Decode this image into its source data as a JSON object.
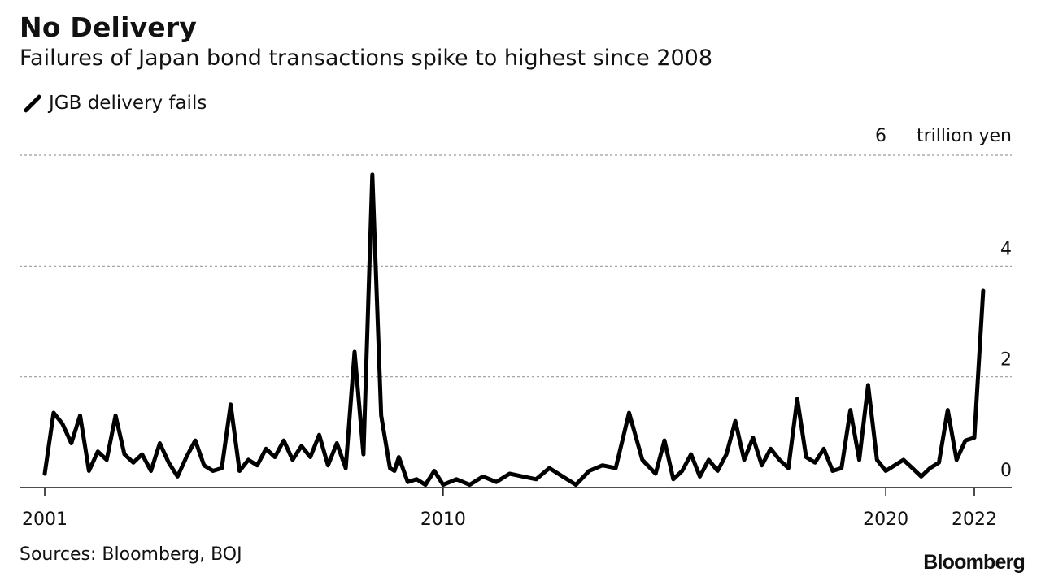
{
  "header": {
    "title": "No Delivery",
    "subtitle": "Failures of Japan bond transactions spike to highest since 2008"
  },
  "legend": {
    "label": "JGB delivery fails"
  },
  "footer": {
    "source": "Sources: Bloomberg, BOJ",
    "brand": "Bloomberg"
  },
  "chart_data": {
    "type": "line",
    "title": "No Delivery",
    "subtitle": "Failures of Japan bond transactions spike to highest since 2008",
    "y_unit": "trillion yen",
    "ylim": [
      0,
      6
    ],
    "y_ticks": [
      0,
      2,
      4,
      6
    ],
    "xlim": [
      2000.8,
      2022.8
    ],
    "x_ticks": [
      2001,
      2010,
      2020,
      2022
    ],
    "grid": true,
    "legend_position": "top-left",
    "series": [
      {
        "name": "JGB delivery fails",
        "color": "#000000",
        "x": [
          2001.0,
          2001.2,
          2001.4,
          2001.6,
          2001.8,
          2002.0,
          2002.2,
          2002.4,
          2002.6,
          2002.8,
          2003.0,
          2003.2,
          2003.4,
          2003.6,
          2003.8,
          2004.0,
          2004.2,
          2004.4,
          2004.6,
          2004.8,
          2005.0,
          2005.2,
          2005.4,
          2005.6,
          2005.8,
          2006.0,
          2006.2,
          2006.4,
          2006.6,
          2006.8,
          2007.0,
          2007.2,
          2007.4,
          2007.6,
          2007.8,
          2008.0,
          2008.2,
          2008.4,
          2008.6,
          2008.8,
          2008.9,
          2009.0,
          2009.2,
          2009.4,
          2009.6,
          2009.8,
          2010.0,
          2010.3,
          2010.6,
          2010.9,
          2011.2,
          2011.5,
          2011.8,
          2012.1,
          2012.4,
          2012.7,
          2013.0,
          2013.3,
          2013.6,
          2013.9,
          2014.2,
          2014.5,
          2014.8,
          2015.0,
          2015.2,
          2015.4,
          2015.6,
          2015.8,
          2016.0,
          2016.2,
          2016.4,
          2016.6,
          2016.8,
          2017.0,
          2017.2,
          2017.4,
          2017.6,
          2017.8,
          2018.0,
          2018.2,
          2018.4,
          2018.6,
          2018.8,
          2019.0,
          2019.2,
          2019.4,
          2019.6,
          2019.8,
          2020.0,
          2020.2,
          2020.4,
          2020.6,
          2020.8,
          2021.0,
          2021.2,
          2021.4,
          2021.6,
          2021.8,
          2022.0,
          2022.2
        ],
        "y": [
          0.25,
          1.35,
          1.15,
          0.8,
          1.3,
          0.3,
          0.65,
          0.5,
          1.3,
          0.6,
          0.45,
          0.6,
          0.3,
          0.8,
          0.45,
          0.2,
          0.55,
          0.85,
          0.4,
          0.3,
          0.35,
          1.5,
          0.3,
          0.5,
          0.4,
          0.7,
          0.55,
          0.85,
          0.5,
          0.75,
          0.55,
          0.95,
          0.4,
          0.8,
          0.35,
          2.45,
          0.6,
          5.65,
          1.3,
          0.35,
          0.3,
          0.55,
          0.1,
          0.15,
          0.05,
          0.3,
          0.05,
          0.15,
          0.05,
          0.2,
          0.1,
          0.25,
          0.2,
          0.15,
          0.35,
          0.2,
          0.05,
          0.3,
          0.4,
          0.35,
          1.35,
          0.5,
          0.25,
          0.85,
          0.15,
          0.3,
          0.6,
          0.2,
          0.5,
          0.3,
          0.6,
          1.2,
          0.5,
          0.9,
          0.4,
          0.7,
          0.5,
          0.35,
          1.6,
          0.55,
          0.45,
          0.7,
          0.3,
          0.35,
          1.4,
          0.5,
          1.85,
          0.5,
          0.3,
          0.4,
          0.5,
          0.35,
          0.2,
          0.35,
          0.45,
          1.4,
          0.5,
          0.85,
          0.9,
          3.55
        ]
      }
    ]
  }
}
